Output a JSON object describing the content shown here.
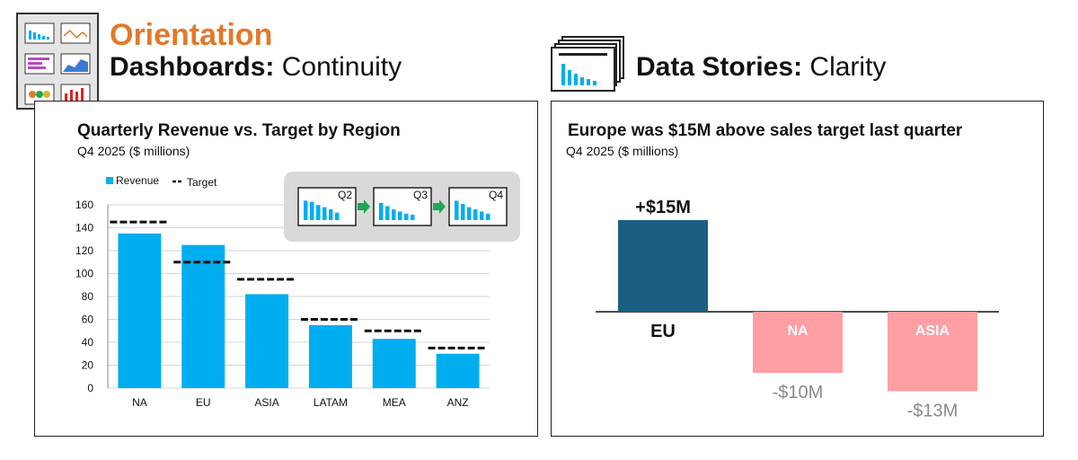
{
  "left": {
    "accent_heading": "Orientation",
    "heading_bold": "Dashboards:",
    "heading_light": "Continuity"
  },
  "right": {
    "heading_bold": "Data Stories:",
    "heading_light": "Clarity"
  },
  "inset": {
    "panels": [
      "Q2",
      "Q3",
      "Q4"
    ]
  },
  "colors": {
    "revenue_bar": "#00aeef",
    "target_line": "#111111",
    "above_target": "#1a5f82",
    "below_target": "#ff9ea3",
    "heading_accent": "#e07a2c",
    "arrow": "#1fa84f"
  },
  "chart_data": [
    {
      "type": "bar",
      "title": "Quarterly Revenue vs. Target by Region",
      "subtitle": "Q4 2025 ($ millions)",
      "categories": [
        "NA",
        "EU",
        "ASIA",
        "LATAM",
        "MEA",
        "ANZ"
      ],
      "series": [
        {
          "name": "Revenue",
          "kind": "bar",
          "values": [
            135,
            125,
            82,
            55,
            43,
            30
          ]
        },
        {
          "name": "Target",
          "kind": "dash",
          "values": [
            145,
            110,
            95,
            60,
            50,
            35
          ]
        }
      ],
      "ylim": [
        0,
        160
      ],
      "yticks": [
        "0",
        "20",
        "40",
        "60",
        "80",
        "100",
        "120",
        "140",
        "160"
      ],
      "grid": true,
      "legend": "top-left"
    },
    {
      "type": "bar",
      "title": "Europe was $15M above sales target last quarter",
      "subtitle": "Q4 2025 ($ millions)",
      "categories": [
        "EU",
        "NA",
        "ASIA"
      ],
      "values": [
        15,
        -10,
        -13
      ],
      "labels": [
        "+$15M",
        "-$10M",
        "-$13M"
      ],
      "grid": false
    }
  ]
}
